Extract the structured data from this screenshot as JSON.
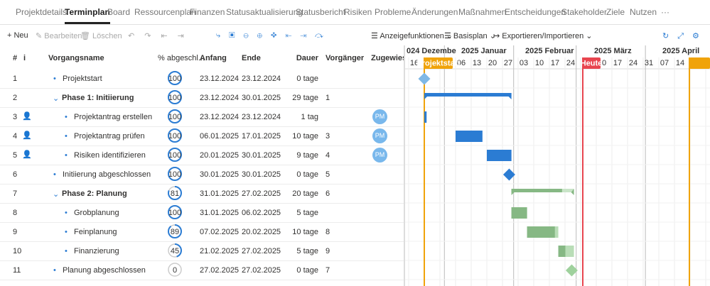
{
  "tabs": [
    "Projektdetails",
    "Terminplan",
    "Board",
    "Ressourcenplan",
    "Finanzen",
    "Statusaktualisierung",
    "Statusbericht",
    "Risiken",
    "Probleme",
    "Änderungen",
    "Maßnahmen",
    "Entscheidungen",
    "Stakeholder",
    "Ziele",
    "Nutzen"
  ],
  "active_tab": 1,
  "toolbar": {
    "new": "Neu",
    "edit": "Bearbeiten",
    "delete": "Löschen",
    "display": "Anzeigefunktionen",
    "baseline": "Basisplan",
    "export": "Exportieren/Importieren"
  },
  "columns": {
    "id": "#",
    "info": "i",
    "name": "Vorgangsname",
    "percent": "% abgeschl...",
    "start": "Anfang",
    "end": "Ende",
    "duration": "Dauer",
    "predecessor": "Vorgänger",
    "assigned": "Zugewiesen"
  },
  "rows": [
    {
      "id": "1",
      "name": "Projektstart",
      "percent": 100,
      "start": "23.12.2024",
      "end": "23.12.2024",
      "duration": "0 tage",
      "level": 0,
      "color": "#7fb8e6"
    },
    {
      "id": "2",
      "name": "Phase 1: Initiierung",
      "percent": 100,
      "start": "23.12.2024",
      "end": "30.01.2025",
      "duration": "29 tage",
      "predecessor": "1",
      "level": 0,
      "summary": true,
      "color": "#2b7cd3"
    },
    {
      "id": "3",
      "name": "Projektantrag erstellen",
      "percent": 100,
      "start": "23.12.2024",
      "end": "23.12.2024",
      "duration": "1 tag",
      "level": 1,
      "assigned": "PM",
      "color": "#2b7cd3"
    },
    {
      "id": "4",
      "name": "Projektantrag prüfen",
      "percent": 100,
      "start": "06.01.2025",
      "end": "17.01.2025",
      "duration": "10 tage",
      "predecessor": "3",
      "level": 1,
      "assigned": "PM",
      "color": "#2b7cd3"
    },
    {
      "id": "5",
      "name": "Risiken identifizieren",
      "percent": 100,
      "start": "20.01.2025",
      "end": "30.01.2025",
      "duration": "9 tage",
      "predecessor": "4",
      "level": 1,
      "assigned": "PM",
      "color": "#2b7cd3"
    },
    {
      "id": "6",
      "name": "Initiierung abgeschlossen",
      "percent": 100,
      "start": "30.01.2025",
      "end": "30.01.2025",
      "duration": "0 tage",
      "predecessor": "5",
      "level": 0,
      "color": "#2b7cd3"
    },
    {
      "id": "7",
      "name": "Phase 2: Planung",
      "percent": 81,
      "start": "31.01.2025",
      "end": "27.02.2025",
      "duration": "20 tage",
      "predecessor": "6",
      "level": 0,
      "summary": true,
      "color": "#86b884"
    },
    {
      "id": "8",
      "name": "Grobplanung",
      "percent": 100,
      "start": "31.01.2025",
      "end": "06.02.2025",
      "duration": "5 tage",
      "level": 1,
      "color": "#86b884"
    },
    {
      "id": "9",
      "name": "Feinplanung",
      "percent": 89,
      "start": "07.02.2025",
      "end": "20.02.2025",
      "duration": "10 tage",
      "predecessor": "8",
      "level": 1,
      "color": "#86b884"
    },
    {
      "id": "10",
      "name": "Finanzierung",
      "percent": 45,
      "start": "21.02.2025",
      "end": "27.02.2025",
      "duration": "5 tage",
      "predecessor": "9",
      "level": 1,
      "color": "#86b884"
    },
    {
      "id": "11",
      "name": "Planung abgeschlossen",
      "percent": 0,
      "start": "27.02.2025",
      "end": "27.02.2025",
      "duration": "0 tage",
      "predecessor": "7",
      "level": 0,
      "color": "#9fd19d"
    }
  ],
  "timeline": {
    "months": [
      "024 Dezembe",
      "2025 Januar",
      "2025 Februar",
      "2025 März",
      "2025 April"
    ],
    "weeks": [
      "16",
      "06",
      "13",
      "20",
      "27",
      "03",
      "10",
      "17",
      "24",
      "10",
      "17",
      "24",
      "31",
      "07",
      "14"
    ],
    "start_marker": "Projektstart",
    "today_marker": "Heute"
  }
}
